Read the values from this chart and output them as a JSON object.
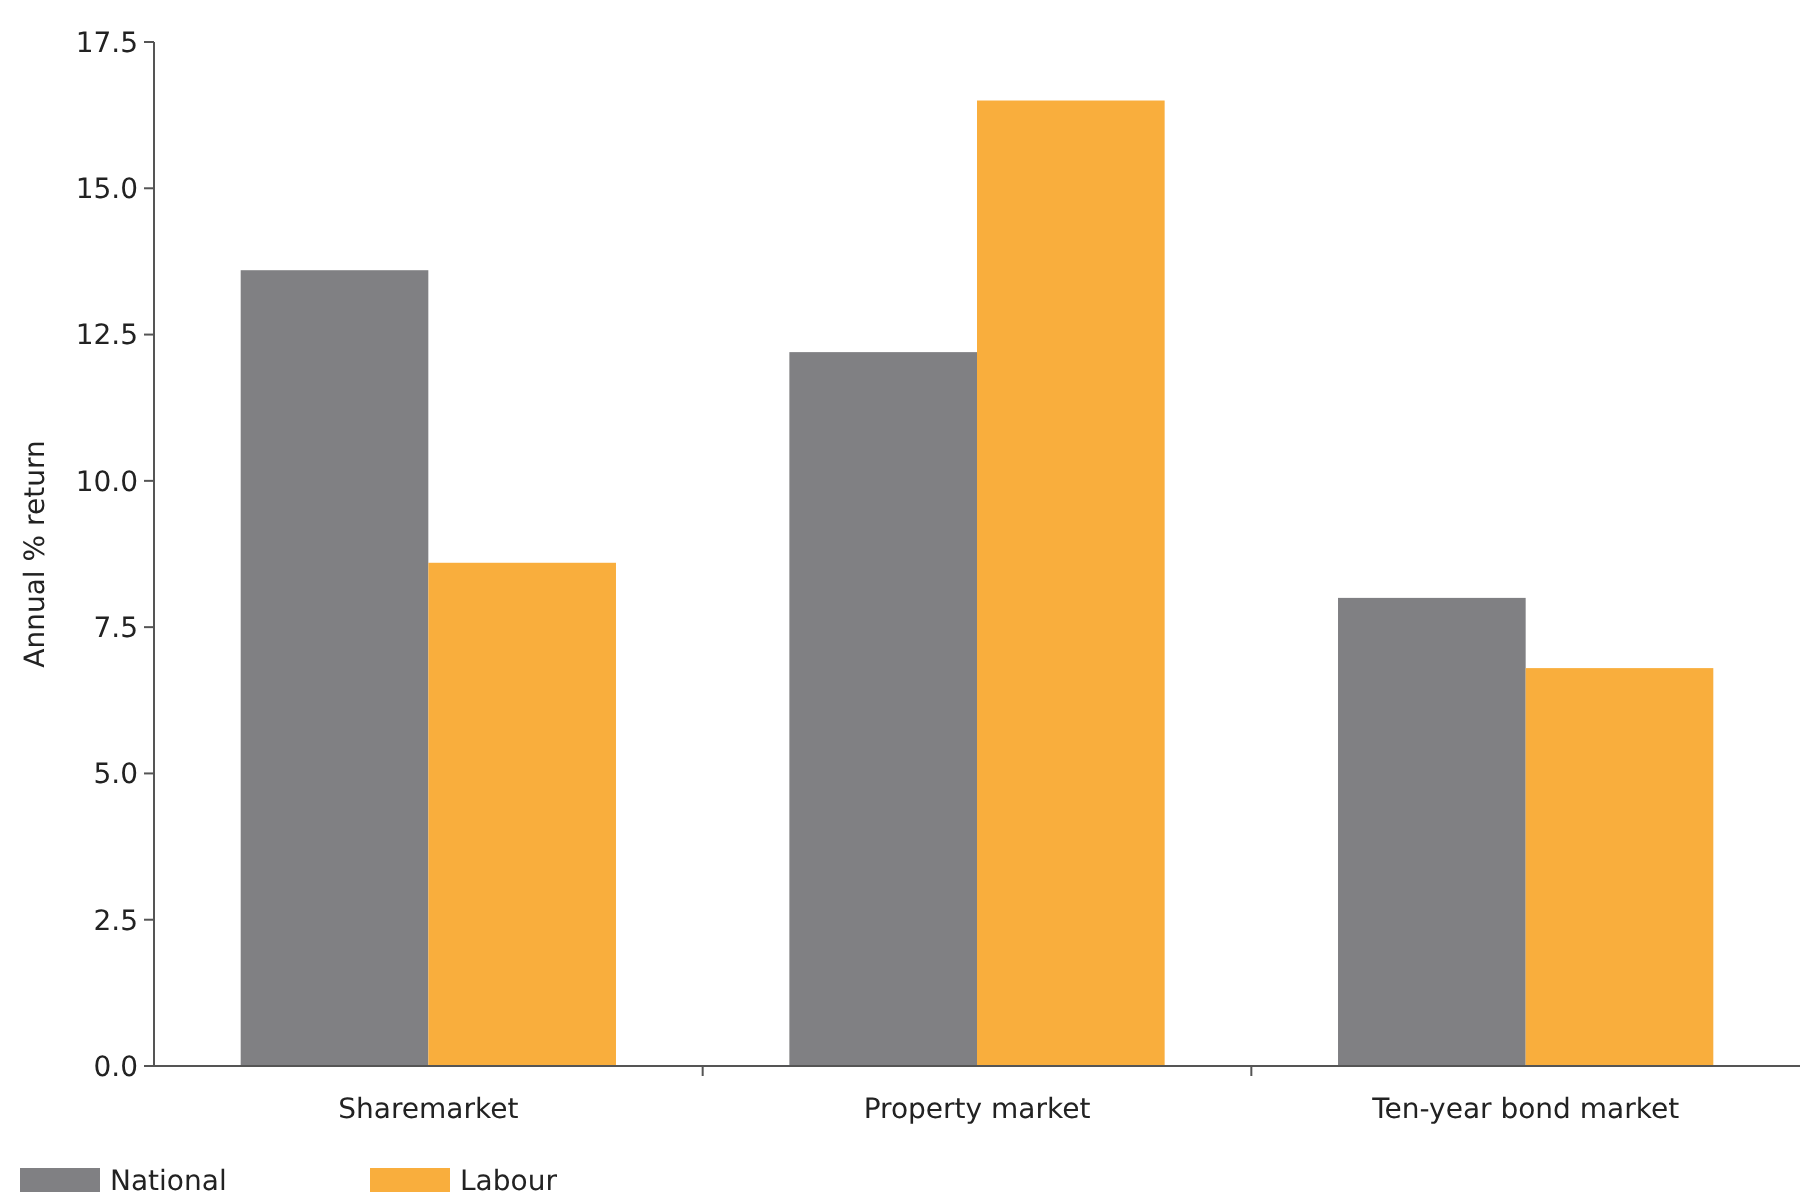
{
  "chart_data": {
    "type": "bar",
    "ylabel": "Annual % return",
    "categories": [
      "Sharemarket",
      "Property market",
      "Ten-year bond market"
    ],
    "series": [
      {
        "name": "National",
        "color": "#808083",
        "values": [
          13.6,
          12.2,
          8.0
        ]
      },
      {
        "name": "Labour",
        "color": "#f9ae3d",
        "values": [
          8.6,
          16.5,
          6.8
        ]
      }
    ],
    "ylim": [
      0,
      17.5
    ],
    "yticks": [
      {
        "value": 0,
        "label": "0.0"
      },
      {
        "value": 2.5,
        "label": "2.5"
      },
      {
        "value": 5,
        "label": "5.0"
      },
      {
        "value": 7.5,
        "label": "7.5"
      },
      {
        "value": 10,
        "label": "10.0"
      },
      {
        "value": 12.5,
        "label": "12.5"
      },
      {
        "value": 15,
        "label": "15.0"
      },
      {
        "value": 17.5,
        "label": "17.5"
      }
    ],
    "grid": false,
    "legend": "bottom left"
  }
}
